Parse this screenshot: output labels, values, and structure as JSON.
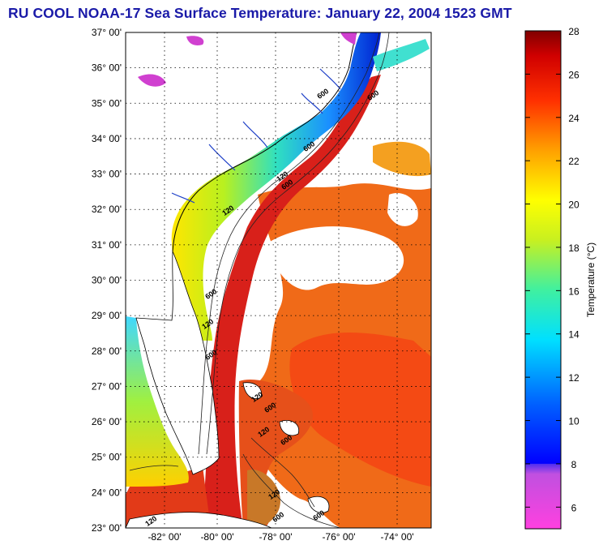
{
  "title": "RU COOL  NOAA-17  Sea Surface Temperature:  January 22, 2004 1523 GMT",
  "map": {
    "lat_labels": [
      "37° 00'",
      "36° 00'",
      "35° 00'",
      "34° 00'",
      "33° 00'",
      "32° 00'",
      "31° 00'",
      "30° 00'",
      "29° 00'",
      "28° 00'",
      "27° 00'",
      "26° 00'",
      "25° 00'",
      "24° 00'",
      "23° 00'"
    ],
    "lon_labels": [
      "-82° 00'",
      "-80° 00'",
      "-78° 00'",
      "-76° 00'",
      "-74° 00'"
    ],
    "contour_labels": [
      "600",
      "600",
      "120",
      "600",
      "120",
      "600",
      "120",
      "600",
      "600",
      "120",
      "600",
      "120",
      "120",
      "600",
      "120",
      "600",
      "600"
    ],
    "colors": {
      "land": "#ffffff",
      "warm": "#e8261a",
      "gulf_stream": "#d21a14",
      "shelf": "#3aa0ff"
    }
  },
  "colorbar": {
    "label": "Temperature (°C)",
    "ticks": [
      "28",
      "26",
      "24",
      "22",
      "20",
      "18",
      "16",
      "14",
      "12",
      "10",
      "8",
      "6"
    ],
    "range": [
      5,
      28
    ]
  }
}
